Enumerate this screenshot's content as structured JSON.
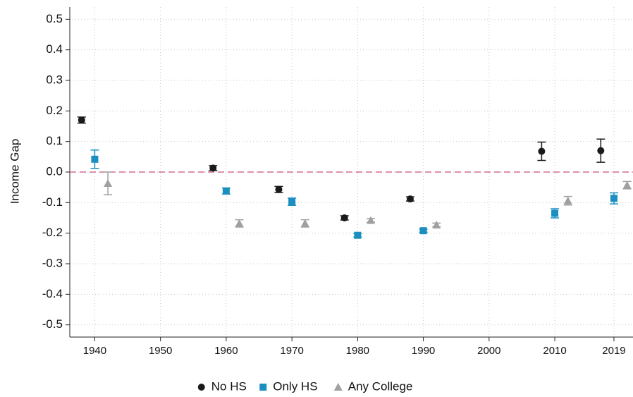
{
  "chart_data": {
    "type": "scatter",
    "ylabel": "Income Gap",
    "xlim": [
      1936.2,
      2021.9
    ],
    "ylim": [
      -0.54,
      0.54
    ],
    "xticks": [
      1940,
      1950,
      1960,
      1970,
      1980,
      1990,
      2000,
      2010,
      2019
    ],
    "yticks": [
      -0.5,
      -0.4,
      -0.3,
      -0.2,
      -0.1,
      {
        "value": 0,
        "label": "0.0"
      },
      0.1,
      0.2,
      0.3,
      0.4,
      0.5
    ],
    "grid": true,
    "reference_line": 0,
    "legend": "bottom",
    "series": [
      {
        "name": "No HS",
        "color": "#1a1a1a",
        "marker": "circle",
        "x": [
          1938,
          1958,
          1968,
          1978,
          1988,
          2008,
          2017
        ],
        "values": [
          0.17,
          0.013,
          -0.057,
          -0.15,
          -0.088,
          0.068,
          0.07
        ],
        "errors": [
          0.01,
          0.008,
          0.01,
          0.007,
          0.007,
          0.03,
          0.038
        ]
      },
      {
        "name": "Only HS",
        "color": "#1a8fc0",
        "marker": "square",
        "x": [
          1940,
          1960,
          1970,
          1980,
          1990,
          2010,
          2019
        ],
        "values": [
          0.042,
          -0.062,
          -0.097,
          -0.207,
          -0.192,
          -0.135,
          -0.086
        ],
        "errors": [
          0.03,
          0.01,
          0.012,
          0.006,
          0.005,
          0.015,
          0.018
        ]
      },
      {
        "name": "Any College",
        "color": "#a0a0a0",
        "marker": "triangle",
        "x": [
          1942,
          1962,
          1972,
          1982,
          1992,
          2012,
          2021
        ],
        "values": [
          -0.037,
          -0.168,
          -0.168,
          -0.158,
          -0.173,
          -0.094,
          -0.043
        ],
        "errors": [
          0.037,
          0.012,
          0.012,
          0.006,
          0.006,
          0.014,
          0.012
        ]
      }
    ]
  }
}
